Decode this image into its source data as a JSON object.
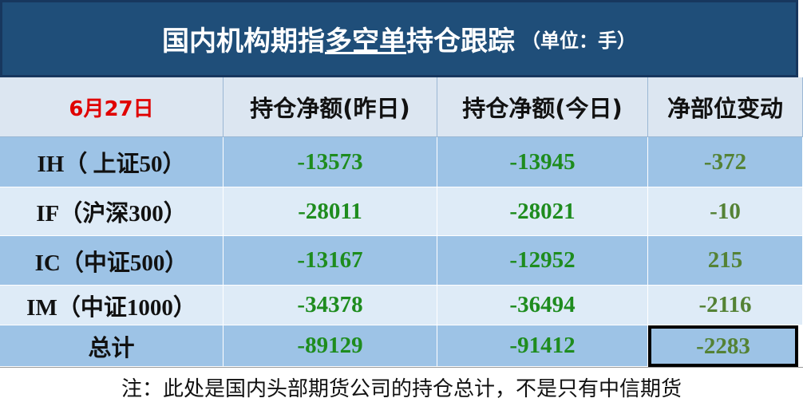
{
  "header": {
    "title_before": "国内机构期指",
    "title_underlined": "多空单",
    "title_after": "持仓跟踪",
    "unit": "（单位：手）"
  },
  "table": {
    "columns": [
      "6月27日",
      "持仓净额(昨日)",
      "持仓净额(今日)",
      "净部位变动"
    ],
    "rows": [
      [
        "IH（ 上证50）",
        "-13573",
        "-13945",
        "-372"
      ],
      [
        "IF（沪深300）",
        "-28011",
        "-28021",
        "-10"
      ],
      [
        "IC（中证500）",
        "-13167",
        "-12952",
        "215"
      ],
      [
        "IM（中证1000）",
        "-34378",
        "-36494",
        "-2116"
      ],
      [
        "总计",
        "-89129",
        "-91412",
        "-2283"
      ]
    ]
  },
  "note": "注：此处是国内头部期货公司的持仓总计，不是只有中信期货"
}
